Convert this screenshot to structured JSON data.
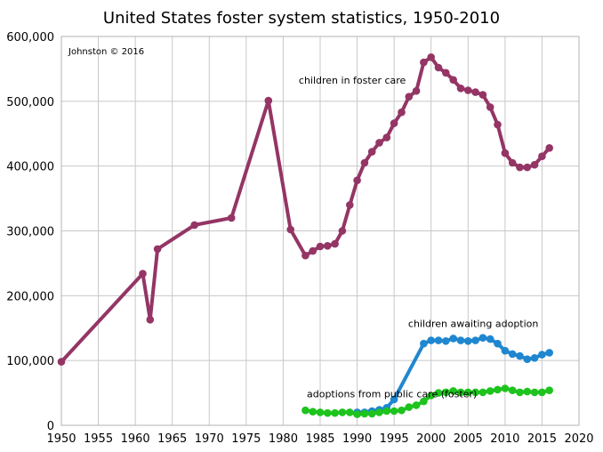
{
  "chart_data": {
    "type": "line",
    "title": "United States foster system statistics, 1950-2010",
    "credit": "Johnston © 2016",
    "xlabel": "",
    "ylabel": "",
    "xlim": [
      1950,
      2020
    ],
    "ylim": [
      0,
      600000
    ],
    "x_ticks": [
      1950,
      1955,
      1960,
      1965,
      1970,
      1975,
      1980,
      1985,
      1990,
      1995,
      2000,
      2005,
      2010,
      2015,
      2020
    ],
    "y_ticks": [
      0,
      100000,
      200000,
      300000,
      400000,
      500000,
      600000
    ],
    "y_tick_labels": [
      "0",
      "100,000",
      "200,000",
      "300,000",
      "400,000",
      "500,000",
      "600,000"
    ],
    "grid": "on",
    "legend": "none (series labelled directly on plot)",
    "series": [
      {
        "name": "children in foster care",
        "color": "#943565",
        "points": [
          [
            1950,
            98000
          ],
          [
            1961,
            234000
          ],
          [
            1962,
            163000
          ],
          [
            1963,
            272000
          ],
          [
            1968,
            309000
          ],
          [
            1973,
            320000
          ],
          [
            1978,
            501000
          ],
          [
            1981,
            302000
          ],
          [
            1983,
            262000
          ],
          [
            1984,
            269000
          ],
          [
            1985,
            276000
          ],
          [
            1986,
            277000
          ],
          [
            1987,
            280000
          ],
          [
            1988,
            300000
          ],
          [
            1989,
            340000
          ],
          [
            1990,
            378000
          ],
          [
            1991,
            405000
          ],
          [
            1992,
            422000
          ],
          [
            1993,
            436000
          ],
          [
            1994,
            444000
          ],
          [
            1995,
            466000
          ],
          [
            1996,
            483000
          ],
          [
            1997,
            507000
          ],
          [
            1998,
            516000
          ],
          [
            1999,
            560000
          ],
          [
            2000,
            568000
          ],
          [
            2001,
            552000
          ],
          [
            2002,
            544000
          ],
          [
            2003,
            533000
          ],
          [
            2004,
            520000
          ],
          [
            2005,
            517000
          ],
          [
            2006,
            514000
          ],
          [
            2007,
            510000
          ],
          [
            2008,
            491000
          ],
          [
            2009,
            464000
          ],
          [
            2010,
            420000
          ],
          [
            2011,
            405000
          ],
          [
            2012,
            398000
          ],
          [
            2013,
            398000
          ],
          [
            2014,
            402000
          ],
          [
            2015,
            415000
          ],
          [
            2016,
            428000
          ]
        ]
      },
      {
        "name": "children awaiting adoption",
        "color": "#1f87cf",
        "points": [
          [
            1990,
            20000
          ],
          [
            1991,
            20000
          ],
          [
            1992,
            22000
          ],
          [
            1993,
            24000
          ],
          [
            1994,
            27000
          ],
          [
            1995,
            40000
          ],
          [
            1999,
            126000
          ],
          [
            2000,
            131000
          ],
          [
            2001,
            131000
          ],
          [
            2002,
            130000
          ],
          [
            2003,
            134000
          ],
          [
            2004,
            131000
          ],
          [
            2005,
            130000
          ],
          [
            2006,
            131000
          ],
          [
            2007,
            135000
          ],
          [
            2008,
            133000
          ],
          [
            2009,
            126000
          ],
          [
            2010,
            115000
          ],
          [
            2011,
            110000
          ],
          [
            2012,
            107000
          ],
          [
            2013,
            102000
          ],
          [
            2014,
            104000
          ],
          [
            2015,
            109000
          ],
          [
            2016,
            112000
          ]
        ]
      },
      {
        "name": "adoptions from public care (foster)",
        "color": "#1ec31e",
        "points": [
          [
            1983,
            23000
          ],
          [
            1984,
            21000
          ],
          [
            1985,
            20000
          ],
          [
            1986,
            19000
          ],
          [
            1987,
            19000
          ],
          [
            1988,
            20000
          ],
          [
            1989,
            20000
          ],
          [
            1990,
            17000
          ],
          [
            1991,
            18000
          ],
          [
            1992,
            18000
          ],
          [
            1993,
            20000
          ],
          [
            1994,
            22000
          ],
          [
            1995,
            22000
          ],
          [
            1996,
            23000
          ],
          [
            1997,
            28000
          ],
          [
            1998,
            31000
          ],
          [
            1999,
            37000
          ],
          [
            2000,
            46000
          ],
          [
            2001,
            50000
          ],
          [
            2002,
            51000
          ],
          [
            2003,
            53000
          ],
          [
            2004,
            51000
          ],
          [
            2005,
            51000
          ],
          [
            2006,
            51000
          ],
          [
            2007,
            51000
          ],
          [
            2008,
            53000
          ],
          [
            2009,
            55000
          ],
          [
            2010,
            57000
          ],
          [
            2011,
            54000
          ],
          [
            2012,
            51000
          ],
          [
            2013,
            52000
          ],
          [
            2014,
            51000
          ],
          [
            2015,
            51000
          ],
          [
            2016,
            54000
          ]
        ]
      }
    ],
    "annotations": [
      {
        "text": "children in foster care",
        "x": 1982.1,
        "y": 527000,
        "anchor": "start"
      },
      {
        "text": "children awaiting adoption",
        "x": 1996.9,
        "y": 152000,
        "anchor": "start"
      },
      {
        "text": "adoptions from public care (foster)",
        "x": 1983.2,
        "y": 43000,
        "anchor": "start"
      }
    ]
  }
}
